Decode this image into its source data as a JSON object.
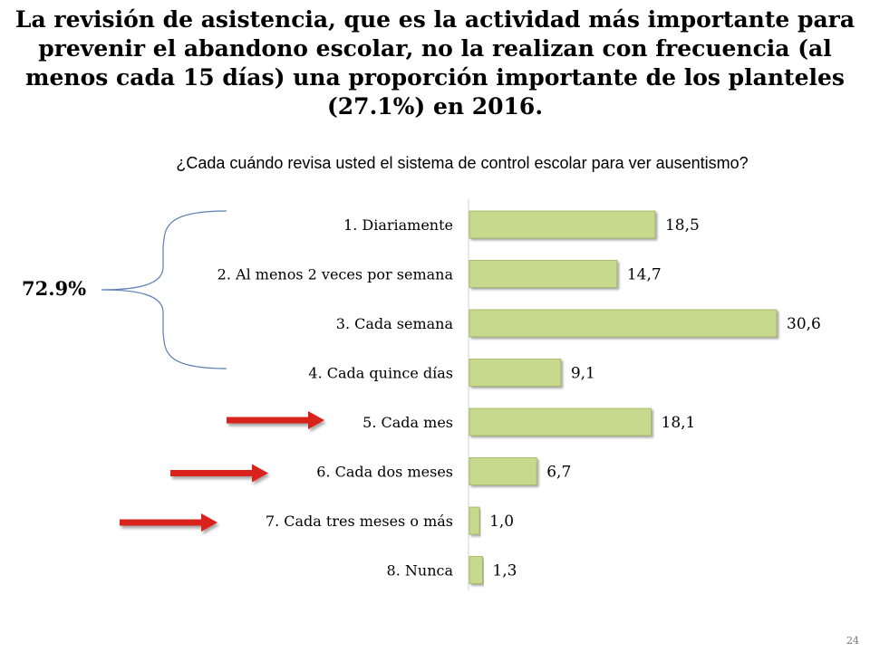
{
  "slide": {
    "title": "La revisión de asistencia, que es la actividad más importante para prevenir el abandono escolar, no la realizan con frecuencia (al menos cada 15 días) una proporción importante de los planteles (27.1%) en 2016.",
    "subtitle": "¿Cada cuándo revisa usted el sistema de control escolar para ver ausentismo?",
    "bracket_label": "72.9%",
    "page_number": "24"
  },
  "colors": {
    "bar_fill": "#c6d98c",
    "bar_stroke": "#9fb35e",
    "bracket": "#5b7fb5",
    "arrow": "#d9201c"
  },
  "chart_data": {
    "type": "bar",
    "orientation": "horizontal",
    "categories": [
      "1. Diariamente",
      "2. Al menos 2 veces por semana",
      "3. Cada semana",
      "4. Cada quince días",
      "5. Cada mes",
      "6. Cada dos meses",
      "7. Cada tres meses o más",
      "8. Nunca"
    ],
    "values": [
      18.5,
      14.7,
      30.6,
      9.1,
      18.1,
      6.7,
      1.0,
      1.3
    ],
    "value_labels": [
      "18,5",
      "14,7",
      "30,6",
      "9,1",
      "18,1",
      "6,7",
      "1,0",
      "1,3"
    ],
    "xlim": [
      0,
      34
    ],
    "grid": false,
    "bracketed_categories": [
      0,
      1,
      2,
      3
    ],
    "arrow_categories": [
      4,
      5,
      6
    ]
  }
}
